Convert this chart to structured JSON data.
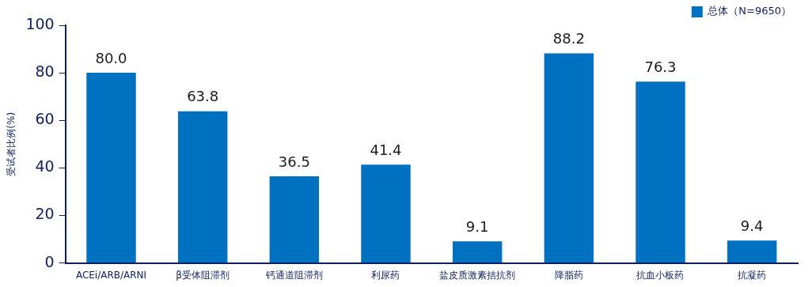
{
  "chart_data": {
    "type": "bar",
    "ylabel": "受试者比例(%)",
    "categories": [
      "ACEi/ARB/ARNI",
      "β受体阻滞剂",
      "钙通道阻滞剂",
      "利尿药",
      "盐皮质激素拮抗剂",
      "降脂药",
      "抗血小板药",
      "抗凝药"
    ],
    "series": [
      {
        "name": "总体（N=9650）",
        "color": "#0070c0",
        "values": [
          80.0,
          63.8,
          36.5,
          41.4,
          9.1,
          88.2,
          76.3,
          9.4
        ]
      }
    ],
    "ylim": [
      0,
      100
    ],
    "yticks": [
      0,
      20,
      40,
      60,
      80,
      100
    ],
    "grid": false,
    "legend": "top right",
    "value_labels": [
      "80.0",
      "63.8",
      "36.5",
      "41.4",
      "9.1",
      "88.2",
      "76.3",
      "9.4"
    ]
  }
}
